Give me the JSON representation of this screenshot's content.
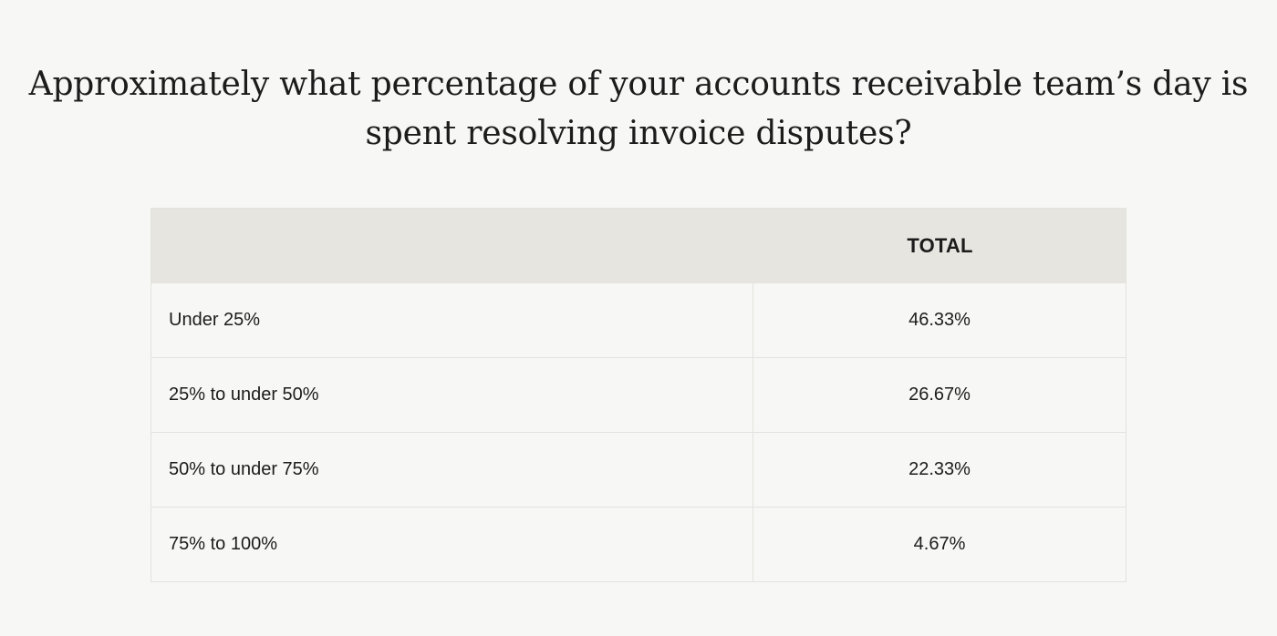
{
  "chart_data": {
    "type": "table",
    "title_line1": "Approximately what percentage of your accounts receivable team’s day is",
    "title_line2": "spent resolving invoice disputes?",
    "columns": [
      "",
      "TOTAL"
    ],
    "rows": [
      {
        "label": "Under 25%",
        "value": "46.33%"
      },
      {
        "label": "25% to under 50%",
        "value": "26.67%"
      },
      {
        "label": "50% to under 75%",
        "value": "22.33%"
      },
      {
        "label": "75% to 100%",
        "value": "4.67%"
      }
    ]
  }
}
